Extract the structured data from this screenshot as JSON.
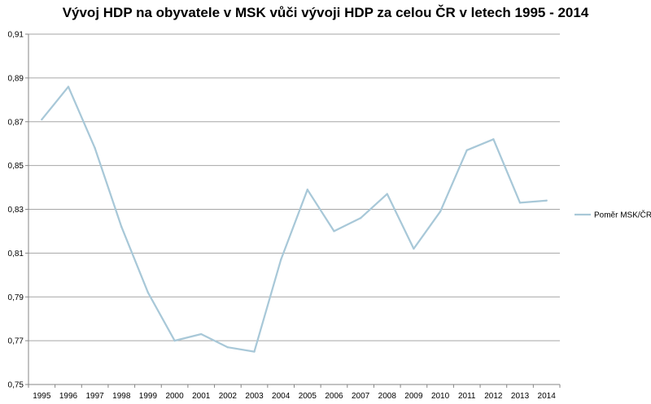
{
  "chart_data": {
    "type": "line",
    "title": "Vývoj HDP na obyvatele v MSK vůči vývoji HDP za celou ČR v letech 1995 - 2014",
    "categories": [
      "1995",
      "1996",
      "1997",
      "1998",
      "1999",
      "2000",
      "2001",
      "2002",
      "2003",
      "2004",
      "2005",
      "2006",
      "2007",
      "2008",
      "2009",
      "2010",
      "2011",
      "2012",
      "2013",
      "2014"
    ],
    "series": [
      {
        "name": "Poměr MSK/ČR",
        "color": "#a8c8d8",
        "values": [
          0.871,
          0.886,
          0.858,
          0.822,
          0.792,
          0.77,
          0.773,
          0.767,
          0.765,
          0.807,
          0.839,
          0.82,
          0.826,
          0.837,
          0.812,
          0.829,
          0.857,
          0.862,
          0.833,
          0.834
        ]
      }
    ],
    "ylim": [
      0.75,
      0.91
    ],
    "yticks": [
      "0,75",
      "0,77",
      "0,79",
      "0,81",
      "0,83",
      "0,85",
      "0,87",
      "0,89",
      "0,91"
    ],
    "ytick_values": [
      0.75,
      0.77,
      0.79,
      0.81,
      0.83,
      0.85,
      0.87,
      0.89,
      0.91
    ],
    "xlabel": "",
    "ylabel": "",
    "grid": true,
    "legend_position": "right"
  }
}
